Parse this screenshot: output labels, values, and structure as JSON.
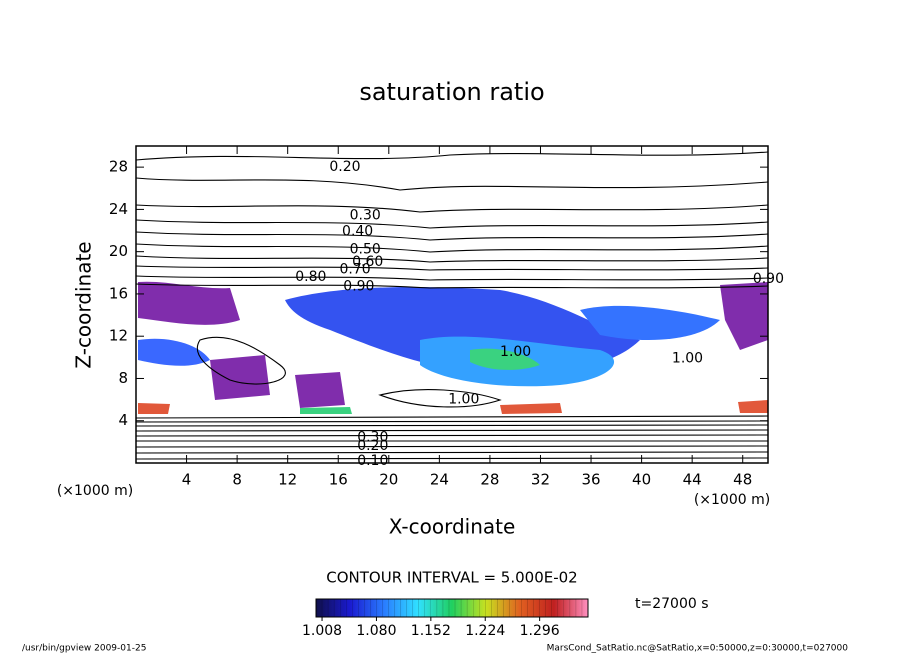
{
  "chart_data": {
    "type": "contour",
    "title": "saturation ratio",
    "x_label": "X-coordinate",
    "y_label": "Z-coordinate",
    "x_unit": "(×1000 m)",
    "y_unit": "(×1000 m)",
    "xlim": [
      0,
      50
    ],
    "xticks": [
      4,
      8,
      12,
      16,
      20,
      24,
      28,
      32,
      36,
      40,
      44,
      48
    ],
    "ylim": [
      0,
      30
    ],
    "yticks": [
      4,
      8,
      12,
      16,
      20,
      24,
      28
    ],
    "contour_labels": [
      {
        "value": 0.2,
        "label": "0.20",
        "x": 15.3,
        "z": 28.0
      },
      {
        "value": 0.3,
        "label": "0.30",
        "x": 16.9,
        "z": 23.4
      },
      {
        "value": 0.4,
        "label": "0.40",
        "x": 16.3,
        "z": 21.9
      },
      {
        "value": 0.5,
        "label": "0.50",
        "x": 16.9,
        "z": 20.2
      },
      {
        "value": 0.6,
        "label": "0.60",
        "x": 17.1,
        "z": 19.0
      },
      {
        "value": 0.7,
        "label": "0.70",
        "x": 16.1,
        "z": 18.3
      },
      {
        "value": 0.8,
        "label": "0.80",
        "x": 12.6,
        "z": 17.6
      },
      {
        "value": 0.9,
        "label": "0.90",
        "x": 16.4,
        "z": 16.7
      },
      {
        "value": 0.9,
        "label": "0.90",
        "x": 48.8,
        "z": 17.4
      },
      {
        "value": 1,
        "label": "1.00",
        "x": 28.8,
        "z": 10.5
      },
      {
        "value": 1,
        "label": "1.00",
        "x": 42.4,
        "z": 9.9
      },
      {
        "value": 1,
        "label": "1.00",
        "x": 24.7,
        "z": 6.0
      },
      {
        "value": 0.3,
        "label": "0.30",
        "x": 17.5,
        "z": 2.4
      },
      {
        "value": 0.2,
        "label": "0.20",
        "x": 17.5,
        "z": 1.6
      },
      {
        "value": 0.1,
        "label": "0.10",
        "x": 17.5,
        "z": 0.2
      }
    ],
    "contour_interval": "CONTOUR INTERVAL = 5.000E-02",
    "colorbar": {
      "lim": [
        1.0,
        1.36
      ],
      "colors": [
        "#10104a",
        "#1a1ad0",
        "#2a7cff",
        "#30e0ff",
        "#20d060",
        "#c8e020",
        "#e06020",
        "#c02020",
        "#ff90c0"
      ],
      "ticks": [
        1.008,
        {
          "value": 1.08,
          "label": "1.080"
        },
        1.152,
        1.224,
        1.296
      ]
    },
    "time_label": "t=27000 s",
    "footer_left": "/usr/bin/gpview   2009-01-25",
    "footer_right": "MarsCond_SatRatio.nc@SatRatio,x=0:50000,z=0:30000,t=027000"
  }
}
